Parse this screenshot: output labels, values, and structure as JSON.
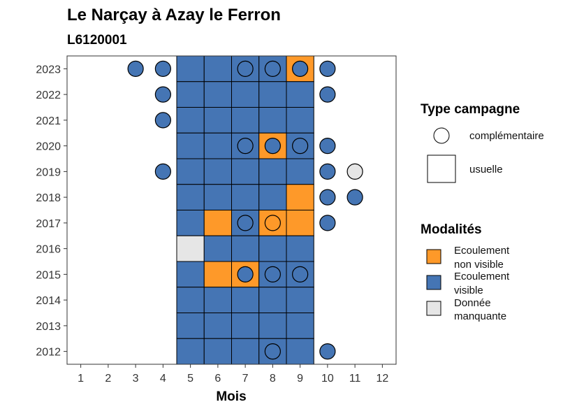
{
  "chart_data": {
    "type": "heatmap",
    "title": "Le Narçay à Azay le Ferron",
    "subtitle": "L6120001",
    "xlabel": "Mois",
    "ylabel": "",
    "x_ticks": [
      "1",
      "2",
      "3",
      "4",
      "5",
      "6",
      "7",
      "8",
      "9",
      "10",
      "11",
      "12"
    ],
    "y_ticks": [
      "2012",
      "2013",
      "2014",
      "2015",
      "2016",
      "2017",
      "2018",
      "2019",
      "2020",
      "2021",
      "2022",
      "2023"
    ],
    "xlim": [
      0.5,
      12.5
    ],
    "ylim": [
      2011.5,
      2023.5
    ],
    "grid": false,
    "legend_position": "right",
    "colors": {
      "ecoulement_non_visible": "#fe9929",
      "ecoulement_visible": "#4575b4",
      "donnee_manquante": "#e6e6e6"
    },
    "legend_type": {
      "title": "Type campagne",
      "items": [
        {
          "key": "complementaire",
          "label": "complémentaire",
          "shape": "circle"
        },
        {
          "key": "usuelle",
          "label": "usuelle",
          "shape": "square"
        }
      ]
    },
    "legend_modalites": {
      "title": "Modalités",
      "items": [
        {
          "key": "ecoulement_non_visible",
          "line1": "Ecoulement",
          "line2": "non visible"
        },
        {
          "key": "ecoulement_visible",
          "line1": "Ecoulement",
          "line2": "visible"
        },
        {
          "key": "donnee_manquante",
          "line1": "Donnée",
          "line2": "manquante"
        }
      ]
    },
    "usual": [
      {
        "year": 2023,
        "months": [
          "V",
          "V",
          "V",
          "V",
          "N"
        ]
      },
      {
        "year": 2022,
        "months": [
          "V",
          "V",
          "V",
          "V",
          "V"
        ]
      },
      {
        "year": 2021,
        "months": [
          "V",
          "V",
          "V",
          "V",
          "V"
        ]
      },
      {
        "year": 2020,
        "months": [
          "V",
          "V",
          "V",
          "N",
          "V"
        ]
      },
      {
        "year": 2019,
        "months": [
          "V",
          "V",
          "V",
          "V",
          "V"
        ]
      },
      {
        "year": 2018,
        "months": [
          "V",
          "V",
          "V",
          "V",
          "N"
        ]
      },
      {
        "year": 2017,
        "months": [
          "V",
          "N",
          "V",
          "N",
          "N"
        ]
      },
      {
        "year": 2016,
        "months": [
          "M",
          "V",
          "V",
          "V",
          "V"
        ]
      },
      {
        "year": 2015,
        "months": [
          "V",
          "N",
          "N",
          "V",
          "V"
        ]
      },
      {
        "year": 2014,
        "months": [
          "V",
          "V",
          "V",
          "V",
          "V"
        ]
      },
      {
        "year": 2013,
        "months": [
          "V",
          "V",
          "V",
          "V",
          "V"
        ]
      },
      {
        "year": 2012,
        "months": [
          "V",
          "V",
          "V",
          "V",
          "V"
        ]
      }
    ],
    "usual_months_start": 5,
    "complementary": [
      {
        "year": 2023,
        "month": 3,
        "m": "V"
      },
      {
        "year": 2023,
        "month": 4,
        "m": "V"
      },
      {
        "year": 2023,
        "month": 7,
        "m": "V"
      },
      {
        "year": 2023,
        "month": 8,
        "m": "V"
      },
      {
        "year": 2023,
        "month": 9,
        "m": "V"
      },
      {
        "year": 2023,
        "month": 10,
        "m": "V"
      },
      {
        "year": 2022,
        "month": 4,
        "m": "V"
      },
      {
        "year": 2022,
        "month": 10,
        "m": "V"
      },
      {
        "year": 2021,
        "month": 4,
        "m": "V"
      },
      {
        "year": 2020,
        "month": 7,
        "m": "V"
      },
      {
        "year": 2020,
        "month": 8,
        "m": "V"
      },
      {
        "year": 2020,
        "month": 9,
        "m": "V"
      },
      {
        "year": 2020,
        "month": 10,
        "m": "V"
      },
      {
        "year": 2019,
        "month": 4,
        "m": "V"
      },
      {
        "year": 2019,
        "month": 10,
        "m": "V"
      },
      {
        "year": 2019,
        "month": 11,
        "m": "M"
      },
      {
        "year": 2018,
        "month": 10,
        "m": "V"
      },
      {
        "year": 2018,
        "month": 11,
        "m": "V"
      },
      {
        "year": 2017,
        "month": 7,
        "m": "V"
      },
      {
        "year": 2017,
        "month": 8,
        "m": "N"
      },
      {
        "year": 2017,
        "month": 10,
        "m": "V"
      },
      {
        "year": 2015,
        "month": 7,
        "m": "V"
      },
      {
        "year": 2015,
        "month": 8,
        "m": "V"
      },
      {
        "year": 2015,
        "month": 9,
        "m": "V"
      },
      {
        "year": 2012,
        "month": 8,
        "m": "V"
      },
      {
        "year": 2012,
        "month": 10,
        "m": "V"
      }
    ]
  }
}
